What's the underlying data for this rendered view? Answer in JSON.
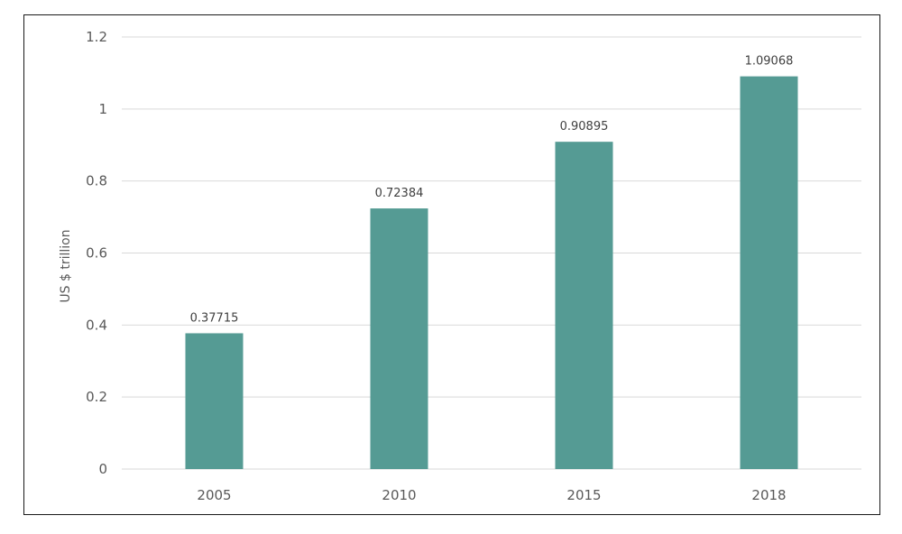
{
  "chart_data": {
    "type": "bar",
    "categories": [
      "2005",
      "2010",
      "2015",
      "2018"
    ],
    "values": [
      0.37715,
      0.72384,
      0.90895,
      1.09068
    ],
    "value_labels": [
      "0.37715",
      "0.72384",
      "0.90895",
      "1.09068"
    ],
    "title": "",
    "xlabel": "",
    "ylabel": "US $ trillion",
    "ylim": [
      0,
      1.2
    ],
    "yticks": [
      "0",
      "0.2",
      "0.4",
      "0.6",
      "0.8",
      "1",
      "1.2"
    ],
    "grid": true,
    "legend": "none",
    "bar_color": "#559b94"
  }
}
